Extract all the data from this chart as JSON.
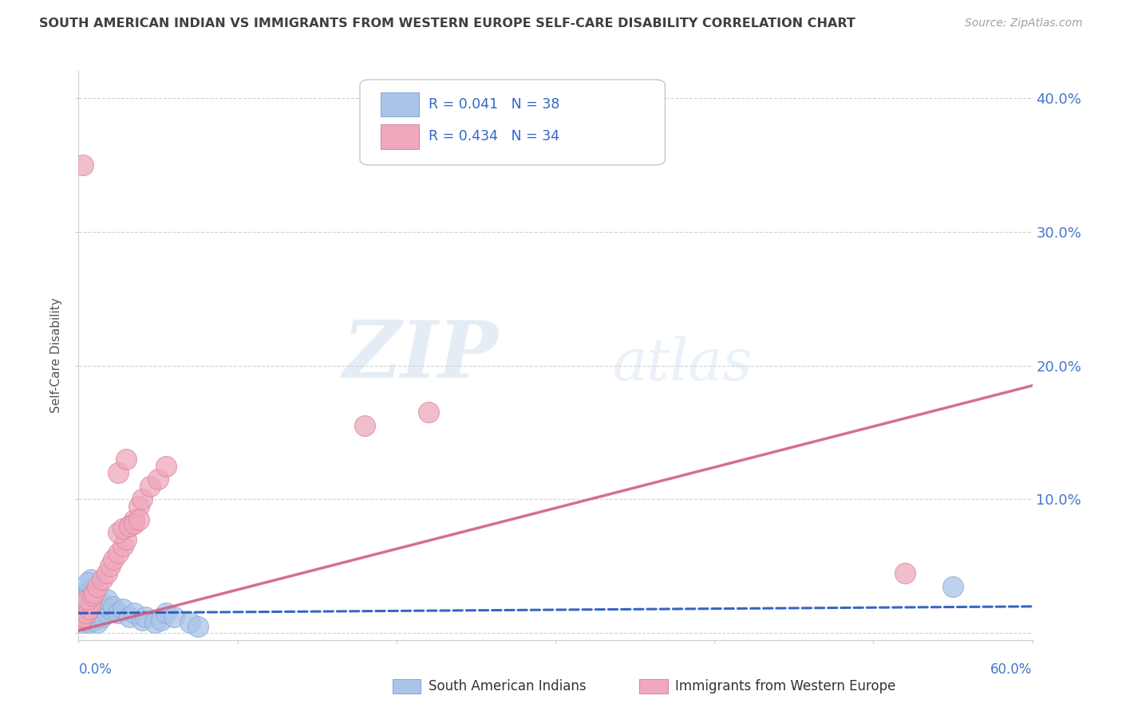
{
  "title": "SOUTH AMERICAN INDIAN VS IMMIGRANTS FROM WESTERN EUROPE SELF-CARE DISABILITY CORRELATION CHART",
  "source": "Source: ZipAtlas.com",
  "ylabel": "Self-Care Disability",
  "legend_r_blue": "R = 0.041",
  "legend_n_blue": "N = 38",
  "legend_r_pink": "R = 0.434",
  "legend_n_pink": "N = 34",
  "label_blue": "South American Indians",
  "label_pink": "Immigrants from Western Europe",
  "blue_color": "#aac4e8",
  "pink_color": "#f0a8bc",
  "blue_line_color": "#2255bb",
  "pink_line_color": "#d06080",
  "title_color": "#404040",
  "source_color": "#a0a0a0",
  "axis_tick_color": "#4477cc",
  "watermark_zip": "ZIP",
  "watermark_atlas": "atlas",
  "xlim": [
    0.0,
    0.6
  ],
  "ylim": [
    -0.005,
    0.42
  ],
  "yticks": [
    0.0,
    0.1,
    0.2,
    0.3,
    0.4
  ],
  "ytick_labels": [
    "",
    "10.0%",
    "20.0%",
    "30.0%",
    "40.0%"
  ],
  "background_color": "#ffffff",
  "grid_color": "#cccccc",
  "blue_scatter_x": [
    0.002,
    0.003,
    0.004,
    0.005,
    0.006,
    0.007,
    0.008,
    0.004,
    0.005,
    0.006,
    0.007,
    0.003,
    0.005,
    0.007,
    0.009,
    0.008,
    0.006,
    0.01,
    0.012,
    0.015,
    0.018,
    0.02,
    0.015,
    0.018,
    0.022,
    0.025,
    0.028,
    0.032,
    0.035,
    0.04,
    0.042,
    0.048,
    0.052,
    0.055,
    0.06,
    0.07,
    0.075,
    0.55
  ],
  "blue_scatter_y": [
    0.01,
    0.008,
    0.012,
    0.015,
    0.01,
    0.008,
    0.012,
    0.02,
    0.018,
    0.022,
    0.025,
    0.03,
    0.028,
    0.032,
    0.035,
    0.04,
    0.038,
    0.01,
    0.008,
    0.012,
    0.015,
    0.018,
    0.022,
    0.025,
    0.02,
    0.015,
    0.018,
    0.012,
    0.015,
    0.01,
    0.012,
    0.008,
    0.01,
    0.015,
    0.012,
    0.008,
    0.005,
    0.035
  ],
  "pink_scatter_x": [
    0.002,
    0.003,
    0.005,
    0.007,
    0.008,
    0.006,
    0.009,
    0.01,
    0.012,
    0.015,
    0.018,
    0.02,
    0.022,
    0.025,
    0.028,
    0.03,
    0.032,
    0.035,
    0.038,
    0.04,
    0.025,
    0.03,
    0.045,
    0.05,
    0.055,
    0.18,
    0.22,
    0.025,
    0.028,
    0.032,
    0.035,
    0.038,
    0.52,
    0.003
  ],
  "pink_scatter_y": [
    0.01,
    0.012,
    0.015,
    0.018,
    0.022,
    0.025,
    0.028,
    0.03,
    0.035,
    0.04,
    0.045,
    0.05,
    0.055,
    0.06,
    0.065,
    0.07,
    0.08,
    0.085,
    0.095,
    0.1,
    0.12,
    0.13,
    0.11,
    0.115,
    0.125,
    0.155,
    0.165,
    0.075,
    0.078,
    0.08,
    0.082,
    0.085,
    0.045,
    0.35
  ],
  "blue_trend_x": [
    0.0,
    0.6
  ],
  "blue_trend_y": [
    0.015,
    0.02
  ],
  "pink_trend_x": [
    0.0,
    0.6
  ],
  "pink_trend_y": [
    0.002,
    0.185
  ]
}
